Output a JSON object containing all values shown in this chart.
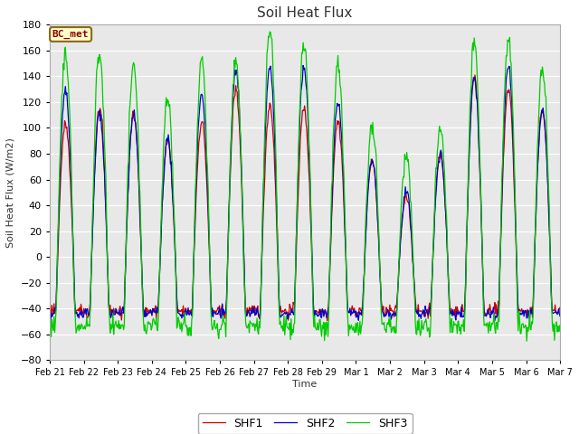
{
  "title": "Soil Heat Flux",
  "ylabel": "Soil Heat Flux (W/m2)",
  "xlabel": "Time",
  "ylim": [
    -80,
    180
  ],
  "yticks": [
    -80,
    -60,
    -40,
    -20,
    0,
    20,
    40,
    60,
    80,
    100,
    120,
    140,
    160,
    180
  ],
  "xtick_labels": [
    "Feb 21",
    "Feb 22",
    "Feb 23",
    "Feb 24",
    "Feb 25",
    "Feb 26",
    "Feb 27",
    "Feb 28",
    "Feb 29",
    "Mar 1",
    "Mar 2",
    "Mar 3",
    "Mar 4",
    "Mar 5",
    "Mar 6",
    "Mar 7"
  ],
  "legend_labels": [
    "SHF1",
    "SHF2",
    "SHF3"
  ],
  "line_colors": [
    "#cc0000",
    "#0000cc",
    "#00cc00"
  ],
  "annotation_text": "BC_met",
  "fig_bg_color": "#ffffff",
  "plot_bg_color": "#e8e8e8",
  "grid_color": "#ffffff",
  "n_days": 15,
  "pts_per_day": 48,
  "day_peaks_shf3": [
    158,
    159,
    148,
    125,
    153,
    152,
    177,
    165,
    150,
    101,
    79,
    103,
    167,
    170,
    147
  ],
  "day_peaks_shf1": [
    103,
    115,
    110,
    90,
    105,
    130,
    118,
    115,
    105,
    75,
    48,
    80,
    140,
    130,
    115
  ],
  "day_peaks_shf2": [
    128,
    112,
    111,
    91,
    126,
    145,
    147,
    148,
    120,
    75,
    50,
    80,
    140,
    148,
    114
  ],
  "night_floor_shf1": -42,
  "night_floor_shf2": -44,
  "night_floor_shf3": -54
}
